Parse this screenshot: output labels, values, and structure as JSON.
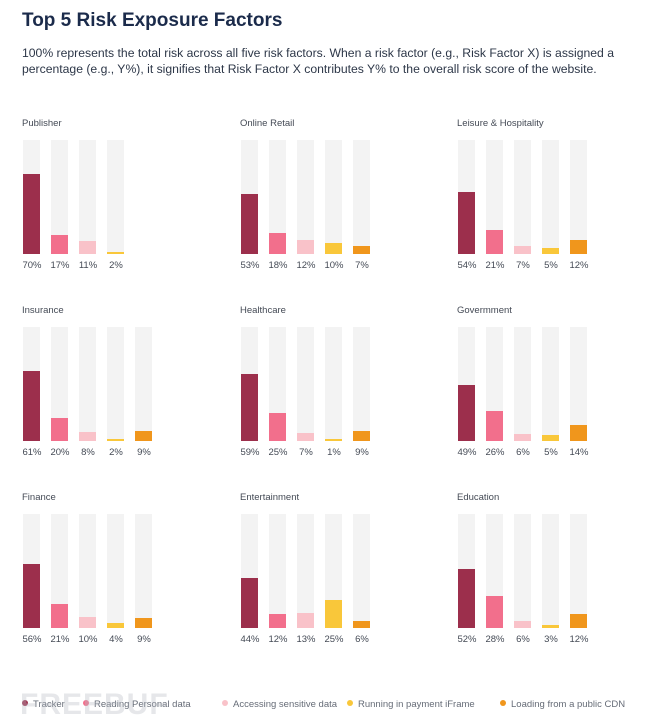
{
  "title": "Top 5 Risk Exposure Factors",
  "subtitle": "100% represents the total risk across all five risk factors. When a risk factor (e.g., Risk Factor X) is assigned a percentage (e.g., Y%), it signifies that Risk Factor X contributes Y% to the overall risk score of the website.",
  "watermark_text": "FREEBUF",
  "colors": {
    "Tracker": "#9c2f4c",
    "Reading Personal data": "#f26f8c",
    "Accessing sensitive data": "#f9c2c9",
    "Running in payment iFrame": "#f9c73a",
    "Loading from a public CDN": "#f0961c",
    "track": "#f3f3f3"
  },
  "legend": [
    {
      "label": "Tracker",
      "color": "#9c2f4c"
    },
    {
      "label": "Reading Personal data",
      "color": "#f26f8c"
    },
    {
      "label": "Accessing sensitive data",
      "color": "#f9c2c9"
    },
    {
      "label": "Running in payment iFrame",
      "color": "#f9c73a"
    },
    {
      "label": "Loading from a public CDN",
      "color": "#f0961c"
    }
  ],
  "chart_data": [
    {
      "type": "bar",
      "title": "Publisher",
      "categories": [
        "Tracker",
        "Reading Personal data",
        "Accessing sensitive data",
        "Running in payment iFrame"
      ],
      "values": [
        70,
        17,
        11,
        2
      ],
      "ylim": [
        0,
        100
      ]
    },
    {
      "type": "bar",
      "title": "Online Retail",
      "categories": [
        "Tracker",
        "Reading Personal data",
        "Accessing sensitive data",
        "Running in payment iFrame",
        "Loading from a public CDN"
      ],
      "values": [
        53,
        18,
        12,
        10,
        7
      ],
      "ylim": [
        0,
        100
      ]
    },
    {
      "type": "bar",
      "title": "Leisure & Hospitality",
      "categories": [
        "Tracker",
        "Reading Personal data",
        "Accessing sensitive data",
        "Running in payment iFrame",
        "Loading from a public CDN"
      ],
      "values": [
        54,
        21,
        7,
        5,
        12
      ],
      "ylim": [
        0,
        100
      ]
    },
    {
      "type": "bar",
      "title": "Insurance",
      "categories": [
        "Tracker",
        "Reading Personal data",
        "Accessing sensitive data",
        "Running in payment iFrame",
        "Loading from a public CDN"
      ],
      "values": [
        61,
        20,
        8,
        2,
        9
      ],
      "ylim": [
        0,
        100
      ]
    },
    {
      "type": "bar",
      "title": "Healthcare",
      "categories": [
        "Tracker",
        "Reading Personal data",
        "Accessing sensitive data",
        "Running in payment iFrame",
        "Loading from a public CDN"
      ],
      "values": [
        59,
        25,
        7,
        1,
        9
      ],
      "ylim": [
        0,
        100
      ]
    },
    {
      "type": "bar",
      "title": "Govermment",
      "categories": [
        "Tracker",
        "Reading Personal data",
        "Accessing sensitive data",
        "Running in payment iFrame",
        "Loading from a public CDN"
      ],
      "values": [
        49,
        26,
        6,
        5,
        14
      ],
      "ylim": [
        0,
        100
      ]
    },
    {
      "type": "bar",
      "title": "Finance",
      "categories": [
        "Tracker",
        "Reading Personal data",
        "Accessing sensitive data",
        "Running in payment iFrame",
        "Loading from a public CDN"
      ],
      "values": [
        56,
        21,
        10,
        4,
        9
      ],
      "ylim": [
        0,
        100
      ]
    },
    {
      "type": "bar",
      "title": "Entertainment",
      "categories": [
        "Tracker",
        "Reading Personal data",
        "Accessing sensitive data",
        "Running in payment iFrame",
        "Loading from a public CDN"
      ],
      "values": [
        44,
        12,
        13,
        25,
        6
      ],
      "ylim": [
        0,
        100
      ]
    },
    {
      "type": "bar",
      "title": "Education",
      "categories": [
        "Tracker",
        "Reading Personal data",
        "Accessing sensitive data",
        "Running in payment iFrame",
        "Loading from a public CDN"
      ],
      "values": [
        52,
        28,
        6,
        3,
        12
      ],
      "ylim": [
        0,
        100
      ]
    }
  ]
}
